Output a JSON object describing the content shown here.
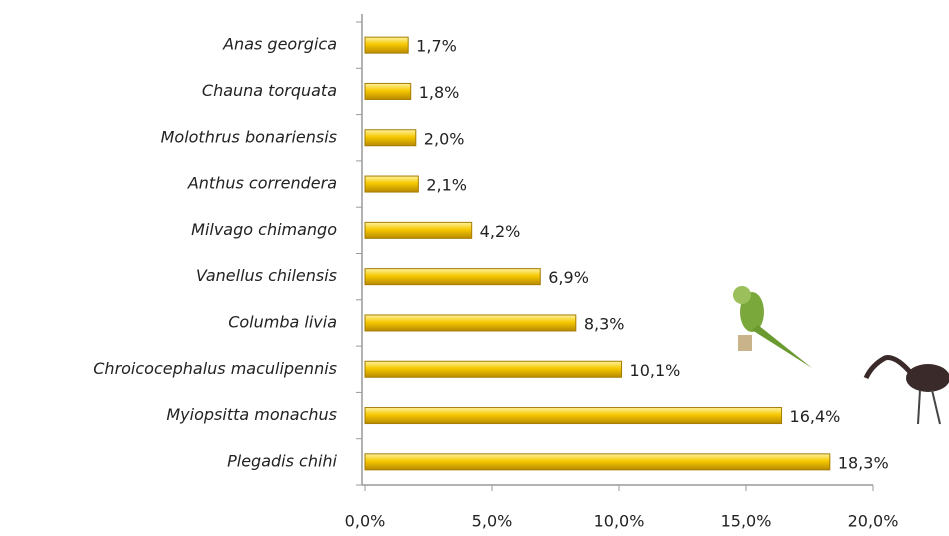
{
  "chart_data": {
    "type": "bar",
    "orientation": "horizontal",
    "categories": [
      "Anas georgica",
      "Chauna torquata",
      "Molothrus bonariensis",
      "Anthus correndera",
      "Milvago chimango",
      "Vanellus chilensis",
      "Columba livia",
      "Chroicocephalus maculipennis",
      "Myiopsitta monachus",
      "Plegadis chihi"
    ],
    "values": [
      1.7,
      1.8,
      2.0,
      2.1,
      4.2,
      6.9,
      8.3,
      10.1,
      16.4,
      18.3
    ],
    "value_labels": [
      "1,7%",
      "1,8%",
      "2,0%",
      "2,1%",
      "4,2%",
      "6,9%",
      "8,3%",
      "10,1%",
      "16,4%",
      "18,3%"
    ],
    "color": "#f2c200",
    "xlim": [
      0,
      20
    ],
    "xticks": [
      {
        "value": 0,
        "label": "0,0%"
      },
      {
        "value": 5,
        "label": "5,0%"
      },
      {
        "value": 10,
        "label": "10,0%"
      },
      {
        "value": 15,
        "label": "15,0%"
      },
      {
        "value": 20,
        "label": "20,0%"
      }
    ]
  }
}
